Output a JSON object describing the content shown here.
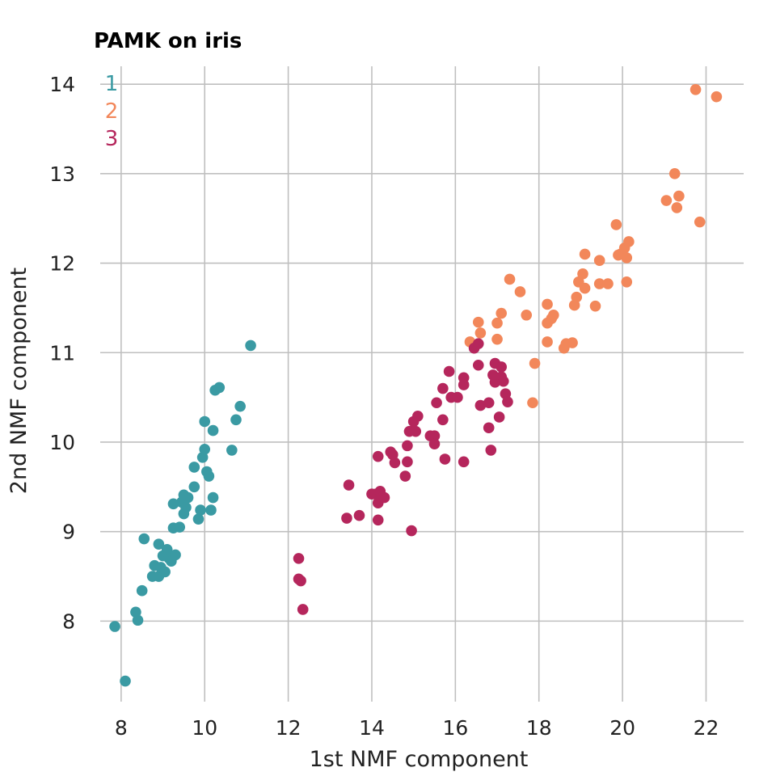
{
  "chart_data": {
    "type": "scatter",
    "title": "PAMK on iris",
    "xlabel": "1st NMF component",
    "ylabel": "2nd NMF component",
    "xlim": [
      7.5,
      22.9
    ],
    "ylim": [
      7.1,
      14.2
    ],
    "x_ticks": [
      8,
      10,
      12,
      14,
      16,
      18,
      20,
      22
    ],
    "y_ticks": [
      8,
      9,
      10,
      11,
      12,
      13,
      14
    ],
    "grid": true,
    "legend_position": "top-left",
    "series": [
      {
        "name": "1",
        "color": "#3a9aa3",
        "points": [
          [
            7.85,
            7.94
          ],
          [
            8.1,
            7.33
          ],
          [
            8.35,
            8.1
          ],
          [
            8.4,
            8.01
          ],
          [
            8.5,
            8.34
          ],
          [
            8.55,
            8.92
          ],
          [
            8.75,
            8.5
          ],
          [
            8.8,
            8.62
          ],
          [
            8.9,
            8.5
          ],
          [
            8.95,
            8.6
          ],
          [
            8.9,
            8.86
          ],
          [
            9.0,
            8.73
          ],
          [
            9.05,
            8.55
          ],
          [
            9.1,
            8.8
          ],
          [
            9.15,
            8.7
          ],
          [
            9.2,
            8.67
          ],
          [
            9.3,
            8.74
          ],
          [
            9.25,
            9.04
          ],
          [
            9.25,
            9.31
          ],
          [
            9.4,
            9.05
          ],
          [
            9.45,
            9.33
          ],
          [
            9.5,
            9.2
          ],
          [
            9.5,
            9.41
          ],
          [
            9.55,
            9.27
          ],
          [
            9.6,
            9.38
          ],
          [
            9.75,
            9.5
          ],
          [
            9.75,
            9.72
          ],
          [
            9.85,
            9.14
          ],
          [
            9.9,
            9.24
          ],
          [
            9.95,
            9.83
          ],
          [
            10.0,
            9.92
          ],
          [
            10.0,
            10.23
          ],
          [
            10.05,
            9.67
          ],
          [
            10.1,
            9.62
          ],
          [
            10.15,
            9.24
          ],
          [
            10.2,
            9.38
          ],
          [
            10.2,
            10.13
          ],
          [
            10.25,
            10.58
          ],
          [
            10.35,
            10.61
          ],
          [
            10.65,
            9.91
          ],
          [
            10.75,
            10.25
          ],
          [
            10.85,
            10.4
          ],
          [
            11.1,
            11.08
          ]
        ]
      },
      {
        "name": "2",
        "color": "#f2875a",
        "points": [
          [
            16.35,
            11.12
          ],
          [
            16.55,
            11.34
          ],
          [
            16.6,
            11.22
          ],
          [
            17.0,
            11.15
          ],
          [
            17.0,
            11.33
          ],
          [
            17.1,
            11.44
          ],
          [
            17.3,
            11.82
          ],
          [
            17.55,
            11.68
          ],
          [
            17.7,
            11.42
          ],
          [
            17.85,
            10.44
          ],
          [
            17.9,
            10.88
          ],
          [
            18.2,
            11.54
          ],
          [
            18.2,
            11.33
          ],
          [
            18.2,
            11.12
          ],
          [
            18.3,
            11.38
          ],
          [
            18.35,
            11.42
          ],
          [
            18.6,
            11.05
          ],
          [
            18.65,
            11.1
          ],
          [
            18.8,
            11.11
          ],
          [
            18.85,
            11.53
          ],
          [
            18.9,
            11.62
          ],
          [
            18.95,
            11.79
          ],
          [
            19.05,
            11.88
          ],
          [
            19.1,
            12.1
          ],
          [
            19.1,
            11.72
          ],
          [
            19.35,
            11.52
          ],
          [
            19.45,
            11.77
          ],
          [
            19.45,
            12.03
          ],
          [
            19.65,
            11.77
          ],
          [
            19.85,
            12.43
          ],
          [
            19.9,
            12.09
          ],
          [
            19.95,
            12.1
          ],
          [
            20.05,
            12.17
          ],
          [
            20.1,
            12.06
          ],
          [
            20.15,
            12.24
          ],
          [
            20.1,
            11.79
          ],
          [
            21.05,
            12.7
          ],
          [
            21.25,
            13.0
          ],
          [
            21.3,
            12.62
          ],
          [
            21.35,
            12.75
          ],
          [
            21.85,
            12.46
          ],
          [
            21.75,
            13.94
          ],
          [
            22.25,
            13.86
          ]
        ]
      },
      {
        "name": "3",
        "color": "#b5265c",
        "points": [
          [
            12.25,
            8.7
          ],
          [
            12.25,
            8.47
          ],
          [
            12.3,
            8.45
          ],
          [
            12.35,
            8.13
          ],
          [
            13.4,
            9.15
          ],
          [
            13.45,
            9.52
          ],
          [
            13.7,
            9.18
          ],
          [
            14.0,
            9.42
          ],
          [
            14.1,
            9.42
          ],
          [
            14.15,
            9.84
          ],
          [
            14.15,
            9.32
          ],
          [
            14.15,
            9.13
          ],
          [
            14.2,
            9.45
          ],
          [
            14.25,
            9.38
          ],
          [
            14.3,
            9.38
          ],
          [
            14.45,
            9.89
          ],
          [
            14.5,
            9.86
          ],
          [
            14.55,
            9.77
          ],
          [
            14.8,
            9.62
          ],
          [
            14.85,
            9.96
          ],
          [
            14.85,
            9.78
          ],
          [
            14.9,
            10.12
          ],
          [
            14.95,
            9.01
          ],
          [
            15.0,
            10.23
          ],
          [
            15.05,
            10.12
          ],
          [
            15.1,
            10.29
          ],
          [
            15.4,
            10.07
          ],
          [
            15.5,
            10.07
          ],
          [
            15.5,
            9.98
          ],
          [
            15.55,
            10.44
          ],
          [
            15.7,
            10.6
          ],
          [
            15.7,
            10.25
          ],
          [
            15.75,
            9.81
          ],
          [
            15.85,
            10.79
          ],
          [
            15.9,
            10.5
          ],
          [
            16.05,
            10.5
          ],
          [
            16.2,
            10.72
          ],
          [
            16.2,
            10.64
          ],
          [
            16.2,
            9.78
          ],
          [
            16.45,
            11.05
          ],
          [
            16.55,
            11.1
          ],
          [
            16.55,
            10.86
          ],
          [
            16.6,
            10.41
          ],
          [
            16.8,
            10.16
          ],
          [
            16.8,
            10.44
          ],
          [
            16.85,
            9.91
          ],
          [
            16.9,
            10.75
          ],
          [
            16.95,
            10.88
          ],
          [
            16.95,
            10.67
          ],
          [
            17.05,
            10.28
          ],
          [
            17.1,
            10.73
          ],
          [
            17.1,
            10.84
          ],
          [
            17.15,
            10.68
          ],
          [
            17.2,
            10.54
          ],
          [
            17.25,
            10.45
          ]
        ]
      }
    ]
  }
}
